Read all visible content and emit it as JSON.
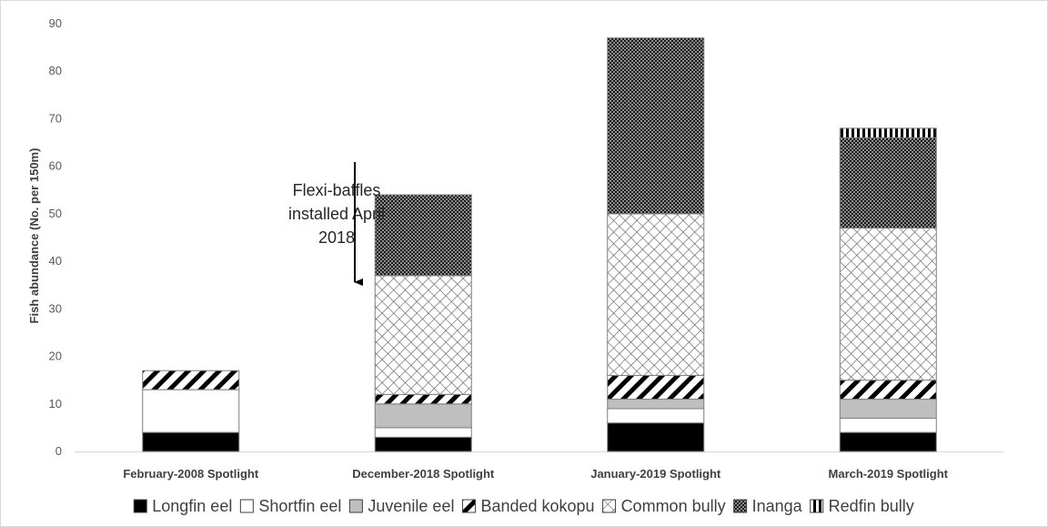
{
  "chart_data": {
    "type": "bar",
    "stacked": true,
    "title": "",
    "xlabel": "",
    "ylabel": "Fish abundance (No. per 150m)",
    "ylim": [
      0,
      90
    ],
    "yticks": [
      0,
      10,
      20,
      30,
      40,
      50,
      60,
      70,
      80,
      90
    ],
    "grid": false,
    "legend_position": "bottom",
    "categories": [
      "February-2008 Spotlight",
      "December-2018 Spotlight",
      "January-2019 Spotlight",
      "March-2019 Spotlight"
    ],
    "series": [
      {
        "name": "Longfin eel",
        "pattern": "solid-black",
        "values": [
          4,
          3,
          6,
          4
        ]
      },
      {
        "name": "Shortfin eel",
        "pattern": "white",
        "values": [
          9,
          2,
          3,
          3
        ]
      },
      {
        "name": "Juvenile eel",
        "pattern": "grey",
        "values": [
          0,
          5,
          2,
          4
        ]
      },
      {
        "name": "Banded kokopu",
        "pattern": "diagonal-stripes",
        "values": [
          4,
          2,
          5,
          4
        ]
      },
      {
        "name": "Common bully",
        "pattern": "cross-hatch",
        "values": [
          0,
          25,
          34,
          32
        ]
      },
      {
        "name": "Inanga",
        "pattern": "dark-checker",
        "values": [
          0,
          17,
          37,
          19
        ]
      },
      {
        "name": "Redfin bully",
        "pattern": "vertical-stripes",
        "values": [
          0,
          0,
          0,
          2
        ]
      }
    ],
    "annotations": [
      {
        "lines": [
          "Flexi-baffles",
          "installed April",
          "2018"
        ],
        "arrow": "down"
      }
    ]
  },
  "colors": {
    "axis": "#d9d9d9",
    "bar_outline": "#7f7f7f",
    "text": "#404040"
  }
}
